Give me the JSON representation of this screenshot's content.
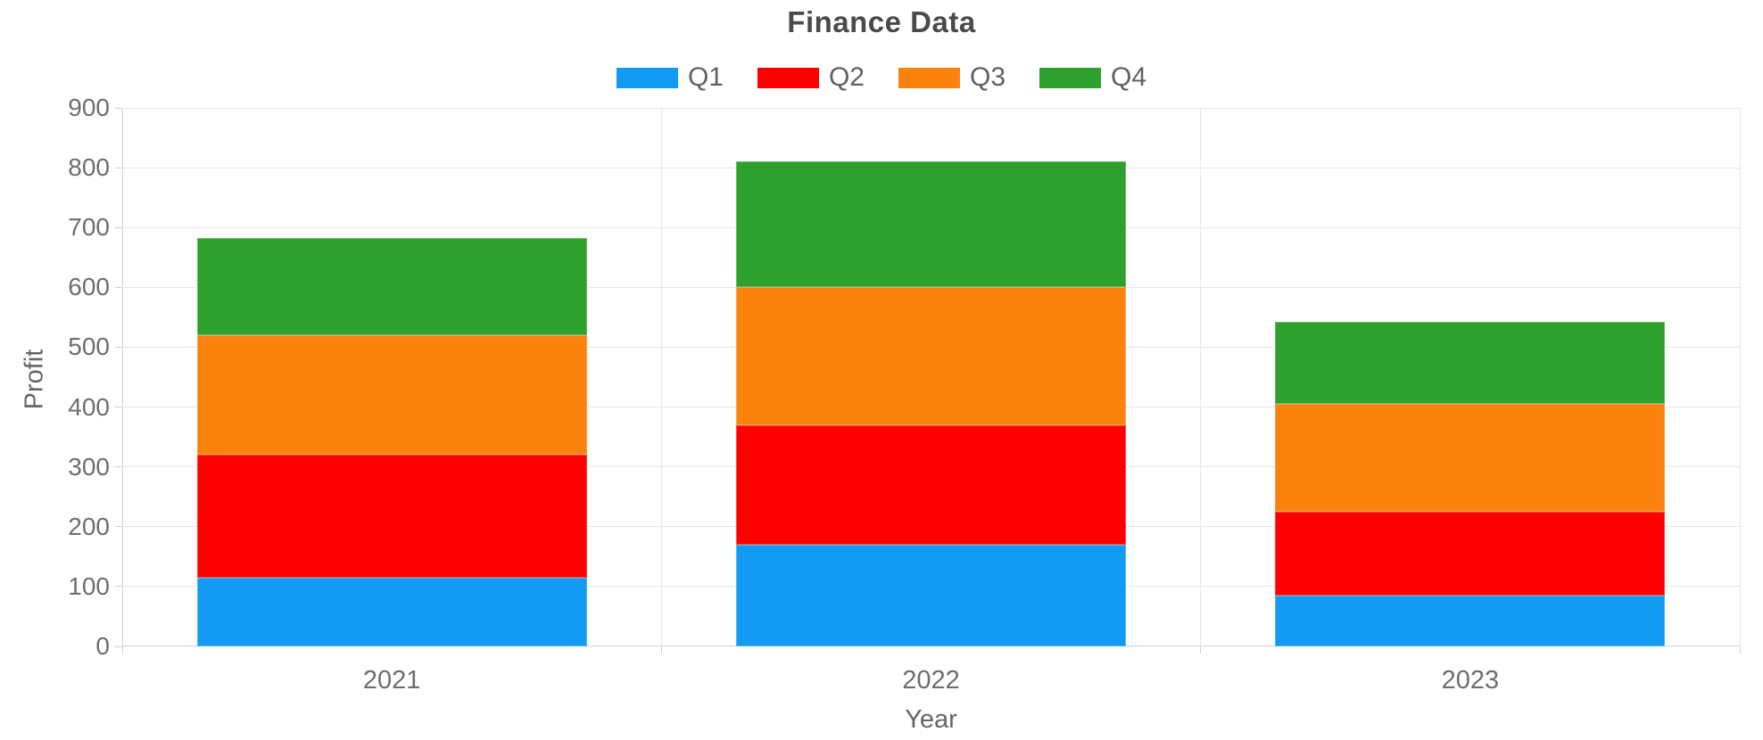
{
  "chart": {
    "title": "Finance Data",
    "xlabel": "Year",
    "ylabel": "Profit"
  },
  "chart_data": {
    "type": "bar",
    "stacked": true,
    "title": "Finance Data",
    "xlabel": "Year",
    "ylabel": "Profit",
    "categories": [
      "2021",
      "2022",
      "2023"
    ],
    "series": [
      {
        "name": "Q1",
        "color": "#129bf2",
        "values": [
          115,
          170,
          85
        ]
      },
      {
        "name": "Q2",
        "color": "#fe0000",
        "values": [
          206,
          200,
          140
        ]
      },
      {
        "name": "Q3",
        "color": "#fc820e",
        "values": [
          199,
          230,
          180
        ]
      },
      {
        "name": "Q4",
        "color": "#2ea02d",
        "values": [
          163,
          210,
          138
        ]
      }
    ],
    "totals": [
      683,
      810,
      543
    ],
    "ylim": [
      0,
      900
    ],
    "yticks": [
      0,
      100,
      200,
      300,
      400,
      500,
      600,
      700,
      800,
      900
    ],
    "grid": true,
    "legend_position": "top",
    "colors": {
      "grid": "#e7e7e7",
      "axis": "#cfcfcf",
      "tick_text": "#6e6e6e",
      "title_text": "#4a4a4a",
      "legend_text": "#616161"
    }
  }
}
